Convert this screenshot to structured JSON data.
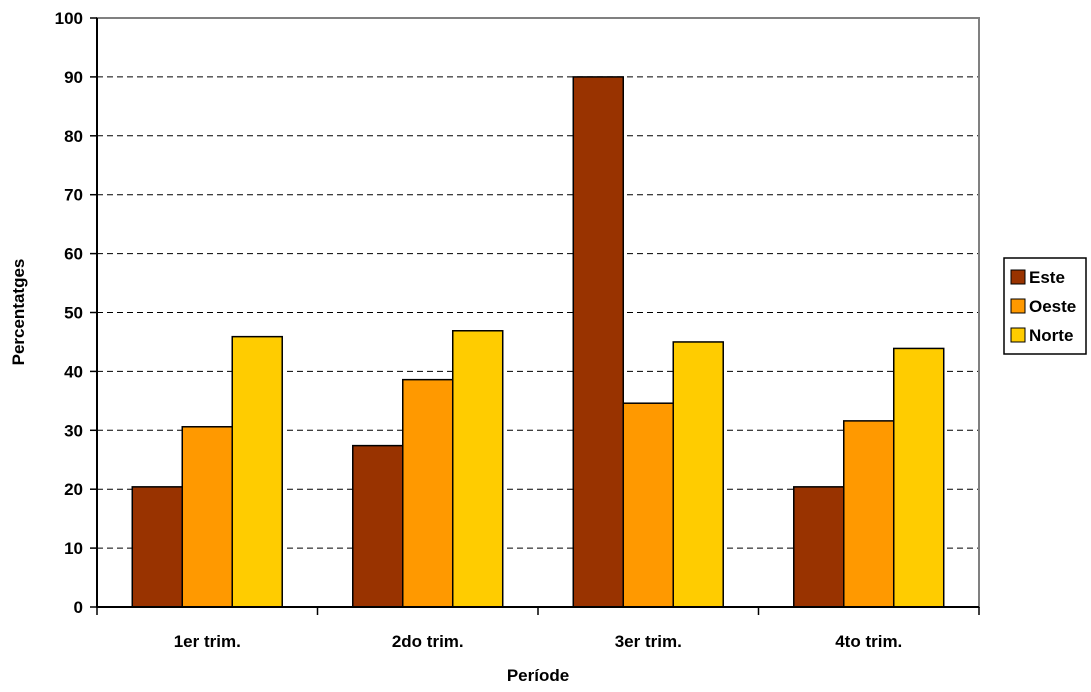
{
  "chart_data": {
    "type": "bar",
    "categories": [
      "1er trim.",
      "2do trim.",
      "3er trim.",
      "4to trim."
    ],
    "series": [
      {
        "name": "Este",
        "color": "#993300",
        "values": [
          20.4,
          27.4,
          90,
          20.4
        ]
      },
      {
        "name": "Oeste",
        "color": "#FF9900",
        "values": [
          30.6,
          38.6,
          34.6,
          31.6
        ]
      },
      {
        "name": "Norte",
        "color": "#FFCC00",
        "values": [
          45.9,
          46.9,
          45,
          43.9
        ]
      }
    ],
    "xlabel": "Període",
    "ylabel": "Percentatges",
    "ylim": [
      0,
      100
    ],
    "yticks": [
      "0",
      "10",
      "20",
      "30",
      "40",
      "50",
      "60",
      "70",
      "80",
      "90",
      "100"
    ],
    "grid": "horizontal dashed",
    "legend_position": "right"
  }
}
